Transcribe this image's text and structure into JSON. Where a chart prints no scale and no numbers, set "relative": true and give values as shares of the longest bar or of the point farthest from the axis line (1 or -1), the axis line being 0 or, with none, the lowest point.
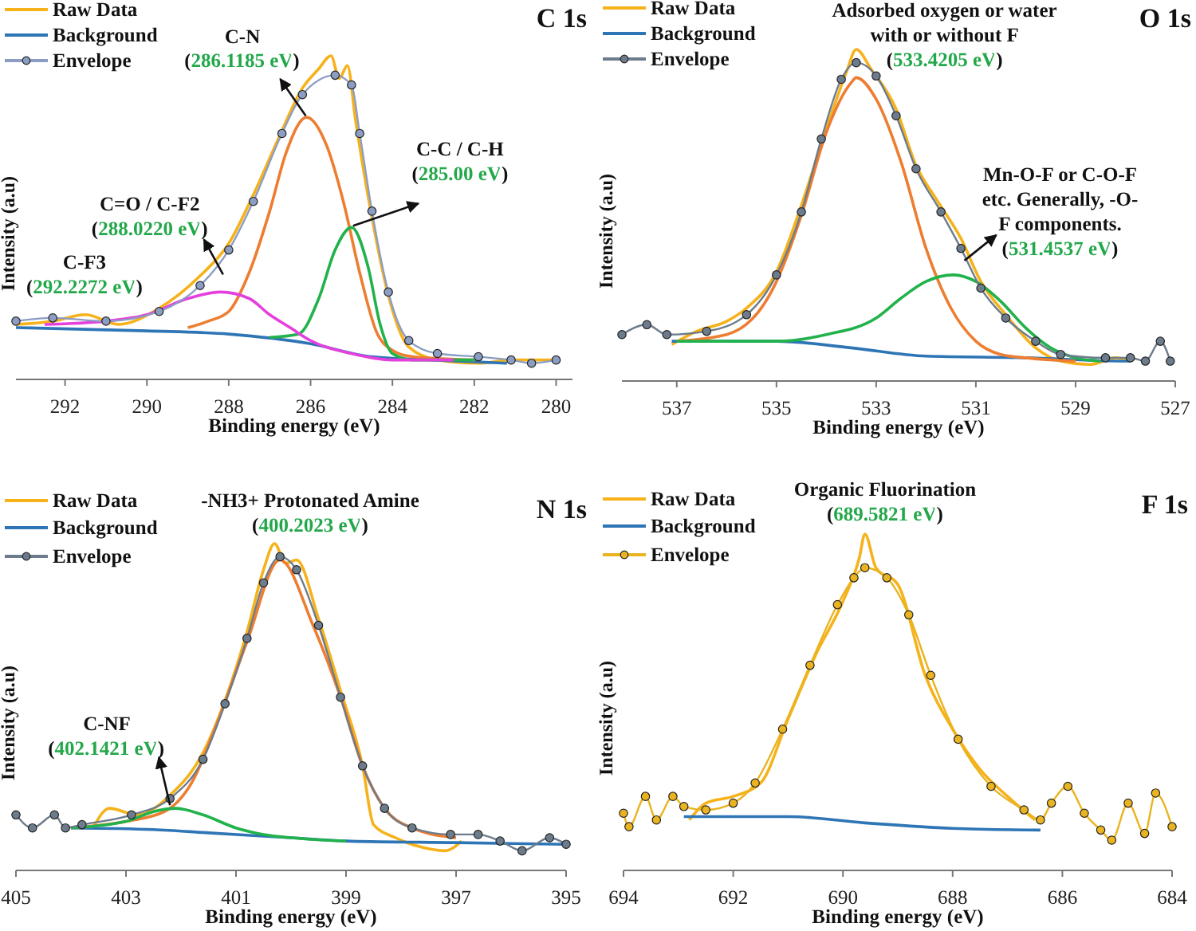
{
  "chart_data": [
    {
      "type": "line",
      "title": "C 1s",
      "xlabel": "Binding energy (eV)",
      "ylabel": "Intensity (a.u)",
      "relative": true,
      "xlim": [
        293.2,
        279.6
      ],
      "xticks": [
        292,
        290,
        288,
        286,
        284,
        282,
        280
      ],
      "legend": "top left",
      "annotations": [
        {
          "text": "C-F3",
          "x": 292.2272,
          "y": 0.19
        },
        {
          "text": "(292.2272 eV)",
          "x": 292.2272,
          "y": 0.19
        },
        {
          "text": "C=O / C-F2\n(288.0220 eV)",
          "x": 288.022,
          "y": 0.27
        },
        "C-N",
        {
          "text": "(286.1185 eV)",
          "x": 286.1185,
          "y": 0.81
        },
        {
          "text": "C-C / C-H\n(285.00 eV)",
          "x": 285.0,
          "y": 0.47
        }
      ],
      "series": [
        {
          "name": "Raw Data",
          "color": "#f5b21b",
          "x": [
            293.2,
            292.3,
            291.5,
            290.7,
            289.7,
            288.7,
            288.0,
            287.4,
            286.8,
            286.2,
            285.8,
            285.5,
            285.3,
            285.1,
            284.9,
            284.5,
            284.1,
            283.6,
            282.9,
            281.9,
            281.1,
            280.0
          ],
          "values": [
            0.17,
            0.18,
            0.2,
            0.17,
            0.22,
            0.32,
            0.42,
            0.57,
            0.74,
            0.9,
            0.96,
            1.0,
            0.93,
            0.97,
            0.8,
            0.5,
            0.26,
            0.1,
            0.06,
            0.05,
            0.06,
            0.06
          ]
        },
        {
          "name": "Background",
          "color": "#2e75b6",
          "x": [
            293.2,
            290,
            288,
            286,
            284.5,
            283,
            281.2
          ],
          "values": [
            0.16,
            0.15,
            0.14,
            0.11,
            0.07,
            0.06,
            0.05
          ]
        },
        {
          "color": "#ed7d31",
          "x": [
            289,
            288.5,
            288,
            287.5,
            287,
            286.6,
            286.1,
            285.6,
            285.2,
            284.8,
            284.4,
            284,
            283.5,
            282
          ],
          "values": [
            0.16,
            0.18,
            0.21,
            0.33,
            0.52,
            0.7,
            0.81,
            0.72,
            0.55,
            0.33,
            0.15,
            0.09,
            0.07,
            0.06
          ]
        },
        {
          "color": "#22b24c",
          "x": [
            287,
            286.3,
            285.8,
            285.4,
            285.0,
            284.6,
            284.3,
            284.0,
            283.5,
            282
          ],
          "values": [
            0.13,
            0.14,
            0.25,
            0.4,
            0.47,
            0.35,
            0.17,
            0.08,
            0.06,
            0.06
          ]
        },
        {
          "color": "#e540dd",
          "x": [
            292.5,
            291,
            290,
            289,
            288.2,
            287.5,
            287,
            286.5,
            286,
            285,
            284,
            282.5
          ],
          "values": [
            0.17,
            0.18,
            0.2,
            0.25,
            0.27,
            0.25,
            0.2,
            0.16,
            0.12,
            0.08,
            0.06,
            0.06
          ]
        },
        {
          "name": "Envelope",
          "color": "#8c9dc4",
          "marker": "circle",
          "x": [
            293.2,
            292.3,
            291.0,
            289.7,
            288.7,
            288.0,
            287.4,
            286.7,
            286.2,
            285.4,
            285.0,
            284.8,
            284.5,
            284.1,
            283.6,
            282.9,
            281.9,
            281.1,
            280.6,
            280.0
          ],
          "values": [
            0.18,
            0.19,
            0.18,
            0.21,
            0.29,
            0.4,
            0.55,
            0.76,
            0.88,
            0.94,
            0.91,
            0.76,
            0.52,
            0.27,
            0.12,
            0.08,
            0.07,
            0.06,
            0.05,
            0.06
          ]
        }
      ]
    },
    {
      "type": "line",
      "title": "O 1s",
      "xlabel": "Binding energy (eV)",
      "ylabel": "Intensity (a.u)",
      "relative": true,
      "xlim": [
        538.1,
        527
      ],
      "xticks": [
        537,
        535,
        533,
        531,
        529,
        527
      ],
      "legend": "top left",
      "annotations": [
        {
          "text": "Adsorbed oxygen or water\nwith or without F\n(533.4205 eV)",
          "x": 533.4205,
          "y": 0.96
        },
        {
          "text": "Mn-O-F or C-O-F\netc. Generally, -O-\nF components.\n(531.4537 eV)",
          "x": 531.4537,
          "y": 0.32
        }
      ],
      "series": [
        {
          "name": "Raw Data",
          "color": "#f5b21b",
          "x": [
            537.1,
            536.6,
            536.0,
            535.6,
            535.0,
            534.5,
            534.0,
            533.6,
            533.4,
            533.1,
            532.6,
            532.2,
            531.8,
            531.3,
            530.9,
            530.4,
            529.8,
            529.3,
            528.7,
            528.2,
            527.9
          ],
          "values": [
            0.11,
            0.15,
            0.18,
            0.22,
            0.33,
            0.53,
            0.76,
            0.93,
            1.0,
            0.94,
            0.82,
            0.65,
            0.55,
            0.43,
            0.3,
            0.2,
            0.1,
            0.06,
            0.05,
            0.07,
            0.06
          ]
        },
        {
          "name": "Background",
          "color": "#2e75b6",
          "x": [
            537.1,
            535,
            533.5,
            532,
            530,
            528,
            527.9
          ],
          "values": [
            0.12,
            0.12,
            0.1,
            0.075,
            0.07,
            0.06,
            0.06
          ]
        },
        {
          "color": "#ed7d31",
          "x": [
            537,
            536,
            535,
            534.5,
            534,
            533.5,
            533.4,
            533,
            532.5,
            532,
            531.5,
            531,
            530.5,
            530,
            529
          ],
          "values": [
            0.12,
            0.14,
            0.3,
            0.5,
            0.75,
            0.9,
            0.915,
            0.85,
            0.66,
            0.4,
            0.22,
            0.12,
            0.08,
            0.07,
            0.06
          ]
        },
        {
          "color": "#22b24c",
          "x": [
            537,
            535,
            534,
            533,
            532.5,
            532,
            531.45,
            531,
            530.5,
            530,
            529.5,
            529,
            528.5
          ],
          "values": [
            0.12,
            0.12,
            0.14,
            0.19,
            0.25,
            0.3,
            0.32,
            0.3,
            0.24,
            0.16,
            0.1,
            0.07,
            0.06
          ]
        },
        {
          "name": "Envelope",
          "color": "#6d7c8c",
          "marker": "circle",
          "x": [
            538.1,
            537.6,
            537.2,
            536.4,
            535.6,
            535.0,
            534.5,
            534.1,
            533.7,
            533.4,
            533.0,
            532.6,
            532.2,
            531.7,
            531.3,
            530.9,
            530.4,
            529.8,
            529.3,
            528.4,
            527.9,
            527.6,
            527.3,
            527.1
          ],
          "values": [
            0.14,
            0.17,
            0.14,
            0.15,
            0.2,
            0.32,
            0.51,
            0.73,
            0.91,
            0.96,
            0.92,
            0.8,
            0.64,
            0.51,
            0.4,
            0.28,
            0.19,
            0.12,
            0.08,
            0.07,
            0.07,
            0.06,
            0.12,
            0.06
          ]
        }
      ]
    },
    {
      "type": "line",
      "title": "N 1s",
      "xlabel": "Binding energy (eV)",
      "ylabel": "Intensity (a.u)",
      "relative": true,
      "xlim": [
        405,
        395
      ],
      "xticks": [
        405,
        403,
        401,
        399,
        397,
        395
      ],
      "legend": "top left",
      "annotations": [
        {
          "text": "-NH3+ Protonated Amine\n(400.2023 eV)",
          "x": 400.2023,
          "y": 0.96
        },
        "C-NF",
        {
          "text": "(402.1421 eV)",
          "x": 402.1421,
          "y": 0.19
        }
      ],
      "series": [
        {
          "name": "Raw Data",
          "color": "#f5b21b",
          "x": [
            403.6,
            403.3,
            402.8,
            402.2,
            401.6,
            401.2,
            400.8,
            400.5,
            400.3,
            400.1,
            399.9,
            399.5,
            399.1,
            398.7,
            398.5,
            398.1,
            397.6,
            397.2,
            396.9
          ],
          "values": [
            0.13,
            0.19,
            0.17,
            0.23,
            0.36,
            0.52,
            0.73,
            0.92,
            1.0,
            0.94,
            0.95,
            0.77,
            0.55,
            0.32,
            0.14,
            0.1,
            0.07,
            0.06,
            0.09
          ]
        },
        {
          "name": "Background",
          "color": "#2e75b6",
          "x": [
            404,
            402.5,
            401.5,
            400,
            399,
            397,
            395
          ],
          "values": [
            0.13,
            0.125,
            0.115,
            0.1,
            0.09,
            0.085,
            0.08
          ]
        },
        {
          "color": "#ed7d31",
          "x": [
            404,
            403,
            402.3,
            401.8,
            401.3,
            400.8,
            400.2,
            399.6,
            399.1,
            398.7,
            398.3,
            397.8,
            397
          ],
          "values": [
            0.13,
            0.15,
            0.18,
            0.27,
            0.47,
            0.7,
            0.95,
            0.75,
            0.53,
            0.32,
            0.19,
            0.13,
            0.1
          ]
        },
        {
          "color": "#22b24c",
          "x": [
            404,
            403,
            402.5,
            402.1,
            401.6,
            401,
            400.5,
            400,
            399
          ],
          "values": [
            0.13,
            0.15,
            0.18,
            0.19,
            0.17,
            0.13,
            0.11,
            0.1,
            0.09
          ]
        },
        {
          "name": "Envelope",
          "color": "#6d7c8c",
          "marker": "circle",
          "x": [
            405,
            404.7,
            404.3,
            404.1,
            403.8,
            402.9,
            402.2,
            401.6,
            401.2,
            400.8,
            400.5,
            400.2,
            399.9,
            399.5,
            399.1,
            398.7,
            398.3,
            397.8,
            397.1,
            396.6,
            396.2,
            395.8,
            395.3,
            395.0
          ],
          "values": [
            0.17,
            0.13,
            0.17,
            0.13,
            0.14,
            0.17,
            0.22,
            0.34,
            0.51,
            0.71,
            0.88,
            0.96,
            0.92,
            0.75,
            0.53,
            0.32,
            0.19,
            0.13,
            0.11,
            0.11,
            0.09,
            0.06,
            0.1,
            0.08
          ]
        }
      ]
    },
    {
      "type": "line",
      "title": "F 1s",
      "xlabel": "Binding energy (eV)",
      "ylabel": "Intensity (a.u)",
      "relative": true,
      "xlim": [
        694,
        684
      ],
      "xticks": [
        694,
        692,
        690,
        688,
        686,
        684
      ],
      "legend": "top left",
      "annotations": [
        {
          "text": "Organic Fluorination\n(689.5821 eV)",
          "x": 689.5821,
          "y": 0.9
        }
      ],
      "series": [
        {
          "name": "Raw Data",
          "color": "#f5b21b",
          "x": [
            692.8,
            692.5,
            692.0,
            691.5,
            691,
            690.5,
            690,
            689.7,
            689.6,
            689.4,
            689,
            688.5,
            688,
            687.5,
            687,
            686.5
          ],
          "values": [
            0.15,
            0.2,
            0.22,
            0.26,
            0.45,
            0.64,
            0.8,
            0.93,
            1.0,
            0.9,
            0.85,
            0.58,
            0.42,
            0.3,
            0.22,
            0.15
          ]
        },
        {
          "name": "Background",
          "color": "#2e75b6",
          "x": [
            692.9,
            691,
            689.5,
            688,
            686.4
          ],
          "values": [
            0.16,
            0.16,
            0.14,
            0.125,
            0.12
          ]
        },
        {
          "name": "Envelope",
          "color": "#eab320",
          "marker": "circle",
          "x": [
            694,
            693.9,
            693.6,
            693.4,
            693.1,
            692.9,
            692.5,
            692.0,
            691.6,
            691.1,
            690.6,
            690.1,
            689.8,
            689.6,
            689.2,
            688.8,
            688.4,
            687.9,
            687.3,
            686.7,
            686.4,
            686.2,
            685.9,
            685.6,
            685.3,
            685.1,
            684.8,
            684.5,
            684.3,
            684.0
          ],
          "values": [
            0.17,
            0.13,
            0.22,
            0.15,
            0.22,
            0.19,
            0.18,
            0.2,
            0.26,
            0.42,
            0.61,
            0.79,
            0.87,
            0.9,
            0.87,
            0.76,
            0.58,
            0.39,
            0.25,
            0.18,
            0.15,
            0.2,
            0.25,
            0.17,
            0.12,
            0.09,
            0.2,
            0.11,
            0.23,
            0.13
          ]
        }
      ]
    }
  ]
}
